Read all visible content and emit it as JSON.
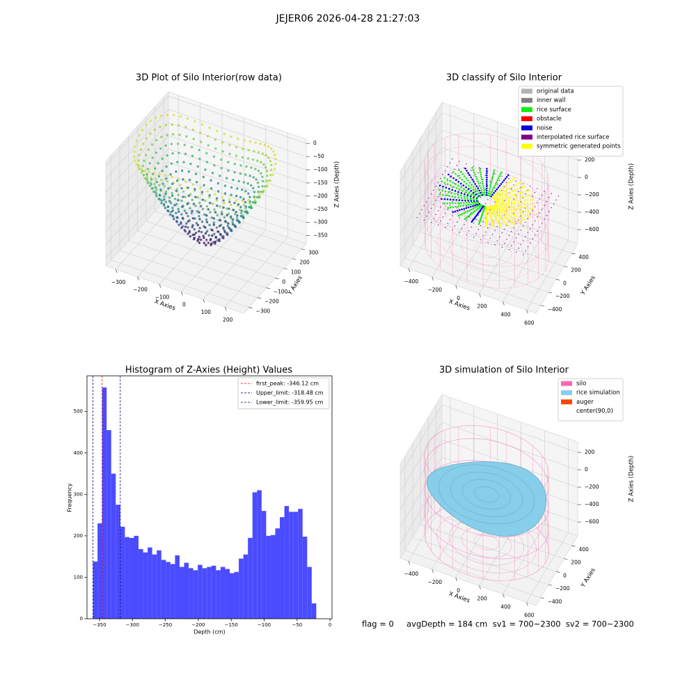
{
  "title": "JEJER06 2026-04-28 21:27:03",
  "chart_data": [
    {
      "type": "scatter3d",
      "title": "3D Plot of Silo Interior(row data)",
      "xlabel": "X Axies",
      "ylabel": "Y Axies",
      "zlabel": "Z Axies (Depth)",
      "xlim": [
        -345,
        285
      ],
      "ylim": [
        -360,
        355
      ],
      "zlim": [
        -380,
        16
      ],
      "xticks": [
        {
          "value": -300,
          "label": "−300"
        },
        {
          "value": -200,
          "label": "−200"
        },
        {
          "value": -100,
          "label": "−100"
        },
        0,
        100,
        200
      ],
      "yticks": [
        {
          "value": -300,
          "label": "−300"
        },
        {
          "value": -200,
          "label": "−200"
        },
        {
          "value": -100,
          "label": "−100"
        },
        0,
        100,
        200,
        300
      ],
      "zticks": [
        0,
        {
          "value": -50,
          "label": "−50"
        },
        {
          "value": -100,
          "label": "−100"
        },
        {
          "value": -150,
          "label": "−150"
        },
        {
          "value": -200,
          "label": "−200"
        },
        {
          "value": -250,
          "label": "−250"
        },
        {
          "value": -300,
          "label": "−300"
        },
        {
          "value": -350,
          "label": "−350"
        }
      ]
    },
    {
      "type": "scatter3d",
      "title": "3D classify of Silo Interior",
      "xlabel": "X Axies",
      "ylabel": "Y Axies",
      "zlabel": "Z Axies (Depth)",
      "xlim": [
        -470,
        680
      ],
      "ylim": [
        -520,
        550
      ],
      "zlim": [
        -760,
        320
      ],
      "xticks": [
        {
          "value": -400,
          "label": "−400"
        },
        {
          "value": -200,
          "label": "−200"
        },
        0,
        200,
        400,
        600
      ],
      "yticks": [
        {
          "value": -400,
          "label": "−400"
        },
        {
          "value": -200,
          "label": "−200"
        },
        0,
        200,
        400
      ],
      "zticks": [
        200,
        0,
        {
          "value": -200,
          "label": "−200"
        },
        {
          "value": -400,
          "label": "−400"
        },
        {
          "value": -600,
          "label": "−600"
        }
      ],
      "legend": [
        {
          "name": "original data",
          "color": "#b3b3b3"
        },
        {
          "name": "inner wall",
          "color": "#808080"
        },
        {
          "name": "rice surface",
          "color": "#11ee11"
        },
        {
          "name": "obstacle",
          "color": "#ff0000"
        },
        {
          "name": "noise",
          "color": "#0000dd"
        },
        {
          "name": "interpolated rice surface",
          "color": "#800080"
        },
        {
          "name": "symmetric generated points",
          "color": "#ffff00"
        }
      ]
    },
    {
      "type": "histogram",
      "title": "Histogram of Z-Axies (Height) Values",
      "xlabel": "Depth (cm)",
      "ylabel": "Frequency",
      "color": "#4b4bff",
      "bins": [
        -359.95,
        -353.03,
        -346.11,
        -339.19,
        -332.27,
        -325.35,
        -318.43,
        -311.51,
        -304.59,
        -297.67,
        -290.75,
        -283.83,
        -276.91,
        -269.99,
        -263.07,
        -256.15,
        -249.23,
        -242.31,
        -235.39,
        -228.47,
        -221.55,
        -214.63,
        -207.71,
        -200.79,
        -193.87,
        -186.95,
        -180.03,
        -173.11,
        -166.19,
        -159.27,
        -152.35,
        -145.43,
        -138.51,
        -131.59,
        -124.67,
        -117.75,
        -110.83,
        -103.91,
        -96.99,
        -90.07,
        -83.15,
        -76.23,
        -69.31,
        -62.39,
        -55.47,
        -48.55,
        -41.63,
        -34.71,
        -27.79,
        -20.87,
        -13.95
      ],
      "counts": [
        138,
        230,
        558,
        455,
        350,
        275,
        222,
        197,
        195,
        200,
        168,
        160,
        172,
        155,
        165,
        142,
        137,
        132,
        153,
        125,
        135,
        122,
        117,
        130,
        122,
        125,
        128,
        117,
        125,
        120,
        110,
        113,
        145,
        155,
        195,
        305,
        310,
        260,
        200,
        202,
        218,
        245,
        272,
        258,
        258,
        265,
        198,
        125,
        37,
        0
      ],
      "xlim": [
        -369,
        3
      ],
      "ylim": [
        0,
        586
      ],
      "xticks": [
        {
          "value": -350,
          "label": "−350"
        },
        {
          "value": -300,
          "label": "−300"
        },
        {
          "value": -250,
          "label": "−250"
        },
        {
          "value": -200,
          "label": "−200"
        },
        {
          "value": -150,
          "label": "−150"
        },
        {
          "value": -100,
          "label": "−100"
        },
        {
          "value": -50,
          "label": "−50"
        },
        0
      ],
      "yticks": [
        0,
        100,
        200,
        300,
        400,
        500
      ],
      "vlines": [
        {
          "label": "first_peak: -346.12 cm",
          "value": -346.12,
          "color": "#ff0000"
        },
        {
          "label": "Upper_limit: -318.48 cm",
          "value": -318.48,
          "color": "#00008b"
        },
        {
          "label": "Lower_limit: -359.95 cm",
          "value": -359.95,
          "color": "#00008b"
        }
      ]
    },
    {
      "type": "surface3d",
      "title": "3D simulation of Silo Interior",
      "xlabel": "X Axies",
      "ylabel": "Y Axies",
      "zlabel": "Z Axies (Depth)",
      "xlim": [
        -470,
        680
      ],
      "ylim": [
        -520,
        550
      ],
      "zlim": [
        -760,
        320
      ],
      "xticks": [
        {
          "value": -400,
          "label": "−400"
        },
        {
          "value": -200,
          "label": "−200"
        },
        0,
        200,
        400,
        600
      ],
      "yticks": [
        {
          "value": -400,
          "label": "−400"
        },
        {
          "value": -200,
          "label": "−200"
        },
        0,
        200,
        400
      ],
      "zticks": [
        200,
        0,
        {
          "value": -200,
          "label": "−200"
        },
        {
          "value": -400,
          "label": "−400"
        },
        {
          "value": -600,
          "label": "−600"
        }
      ],
      "legend": [
        {
          "name": "silo",
          "color": "#ff69b4"
        },
        {
          "name": "rice simulation",
          "color": "#87ceeb"
        },
        {
          "name": "auger",
          "color": "#ff4500"
        },
        {
          "name": "center(90,0)",
          "color": "#ffffff"
        }
      ]
    }
  ],
  "footer": "flag = 0     avgDepth = 184 cm  sv1 = 700~2300  sv2 = 700~2300"
}
